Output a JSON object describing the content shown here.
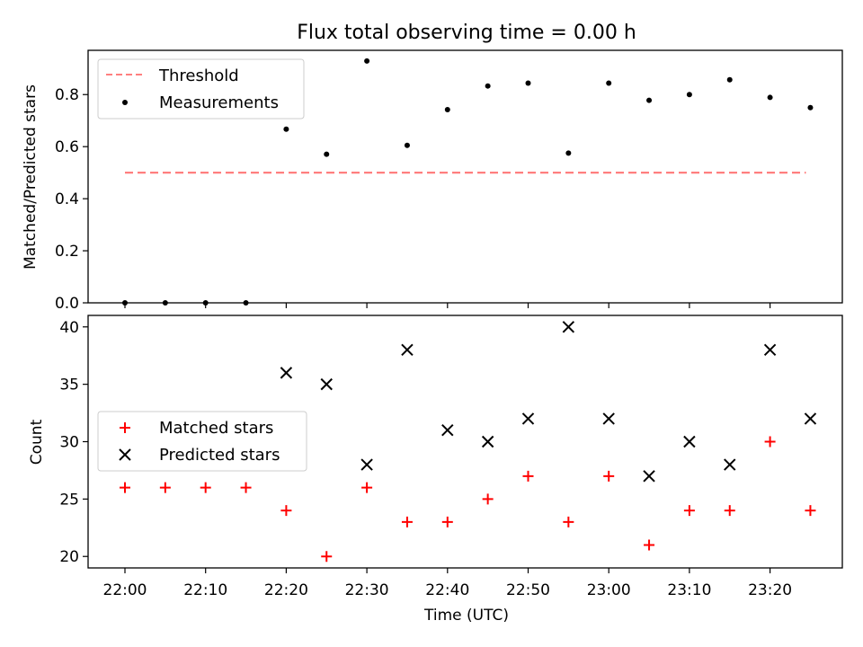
{
  "title": "Flux total observing time = 0.00 h",
  "colors": {
    "threshold": "#ff7f7f",
    "measurement": "#000000",
    "matched": "#ff0000",
    "predicted": "#000000"
  },
  "chart_data": [
    {
      "type": "scatter",
      "ylabel": "Matched/Predicted stars",
      "ylim": [
        0,
        0.97
      ],
      "yticks": [
        "0.0",
        "0.2",
        "0.4",
        "0.6",
        "0.8"
      ],
      "legend": {
        "position": "top-left",
        "entries": [
          "Threshold",
          "Measurements"
        ]
      },
      "series": [
        {
          "name": "Threshold",
          "style": "dashed-line",
          "x": [
            "22:00",
            "23:25"
          ],
          "values": [
            0.5,
            0.5
          ]
        },
        {
          "name": "Measurements",
          "style": "dot",
          "x": [
            "22:00",
            "22:05",
            "22:10",
            "22:15",
            "22:20",
            "22:25",
            "22:30",
            "22:35",
            "22:40",
            "22:45",
            "22:50",
            "22:55",
            "23:00",
            "23:05",
            "23:10",
            "23:15",
            "23:20",
            "23:25"
          ],
          "values": [
            0.0,
            0.0,
            0.0,
            0.0,
            0.667,
            0.571,
            0.929,
            0.605,
            0.742,
            0.833,
            0.844,
            0.575,
            0.844,
            0.778,
            0.8,
            0.857,
            0.789,
            0.75
          ]
        }
      ]
    },
    {
      "type": "scatter",
      "xlabel": "Time (UTC)",
      "ylabel": "Count",
      "ylim": [
        19,
        41
      ],
      "yticks": [
        "20",
        "25",
        "30",
        "35",
        "40"
      ],
      "xticks": [
        "22:00",
        "22:10",
        "22:20",
        "22:30",
        "22:40",
        "22:50",
        "23:00",
        "23:10",
        "23:20"
      ],
      "legend": {
        "position": "center-left",
        "entries": [
          "Matched stars",
          "Predicted stars"
        ]
      },
      "series": [
        {
          "name": "Matched stars",
          "marker": "+",
          "x": [
            "22:00",
            "22:05",
            "22:10",
            "22:15",
            "22:20",
            "22:25",
            "22:30",
            "22:35",
            "22:40",
            "22:45",
            "22:50",
            "22:55",
            "23:00",
            "23:05",
            "23:10",
            "23:15",
            "23:20",
            "23:25"
          ],
          "values": [
            26,
            26,
            26,
            26,
            24,
            20,
            26,
            23,
            23,
            25,
            27,
            23,
            27,
            21,
            24,
            24,
            30,
            24
          ]
        },
        {
          "name": "Predicted stars",
          "marker": "x",
          "x": [
            "22:20",
            "22:25",
            "22:30",
            "22:35",
            "22:40",
            "22:45",
            "22:50",
            "22:55",
            "23:00",
            "23:05",
            "23:10",
            "23:15",
            "23:20",
            "23:25"
          ],
          "values": [
            36,
            35,
            28,
            38,
            31,
            30,
            32,
            40,
            32,
            27,
            30,
            28,
            38,
            32
          ]
        }
      ]
    }
  ]
}
